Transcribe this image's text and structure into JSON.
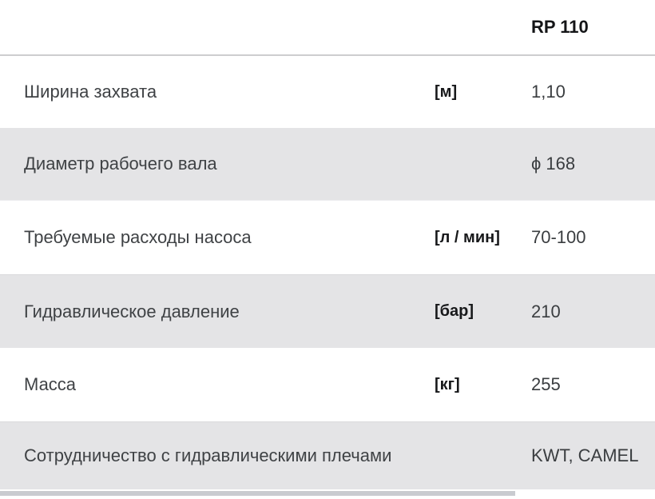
{
  "table": {
    "header": {
      "model": "RP 110"
    },
    "rows": [
      {
        "label": "Ширина захвата",
        "unit": "[м]",
        "value": "1,10",
        "shaded": false
      },
      {
        "label": "Диаметр рабочего вала",
        "unit": "",
        "value": "ϕ 168",
        "shaded": true
      },
      {
        "label": "Требуемые расходы насоса",
        "unit": "[л / мин]",
        "value": "70-100",
        "shaded": false
      },
      {
        "label": "Гидравлическое давление",
        "unit": "[бар]",
        "value": "210",
        "shaded": true
      },
      {
        "label": "Масса",
        "unit": "[кг]",
        "value": "255",
        "shaded": false
      },
      {
        "label": "Сотрудничество с гидравлическими плечами",
        "unit": "",
        "value": "KWT, CAMEL",
        "shaded": true
      }
    ]
  },
  "colors": {
    "shaded_row_bg": "#e4e4e6",
    "plain_row_bg": "#ffffff",
    "label_text": "#3f4245",
    "unit_text": "#17181a",
    "header_separator": "#cdcdcf",
    "scrollbar_thumb": "#c9cbd0"
  }
}
